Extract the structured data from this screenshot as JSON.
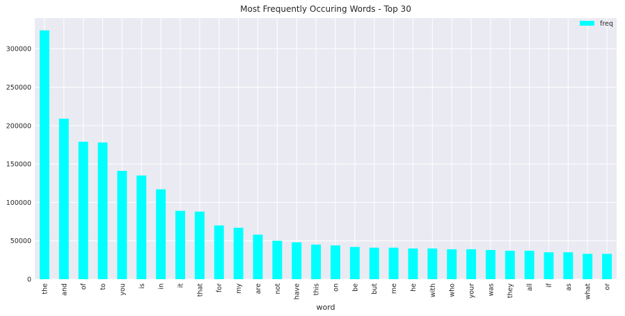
{
  "chart_data": {
    "type": "bar",
    "title": "Most Frequently Occuring Words - Top 30",
    "xlabel": "word",
    "ylabel": "",
    "ylim": [
      0,
      340000
    ],
    "yticks": [
      0,
      50000,
      100000,
      150000,
      200000,
      250000,
      300000
    ],
    "grid": true,
    "legend_position": "top-right",
    "bar_color": "#00ffff",
    "background_color": "#eaeaf2",
    "grid_color": "#ffffff",
    "categories": [
      "the",
      "and",
      "of",
      "to",
      "you",
      "is",
      "in",
      "it",
      "that",
      "for",
      "my",
      "are",
      "not",
      "have",
      "this",
      "on",
      "be",
      "but",
      "me",
      "he",
      "with",
      "who",
      "your",
      "was",
      "they",
      "all",
      "if",
      "as",
      "what",
      "or"
    ],
    "series": [
      {
        "name": "freq",
        "values": [
          324000,
          209000,
          179000,
          178000,
          141000,
          135000,
          117000,
          89000,
          88000,
          70000,
          67000,
          58000,
          50000,
          48000,
          45000,
          44000,
          42000,
          41000,
          41000,
          40000,
          40000,
          39000,
          39000,
          38000,
          37000,
          37000,
          35000,
          35000,
          33000,
          33000
        ]
      }
    ]
  }
}
